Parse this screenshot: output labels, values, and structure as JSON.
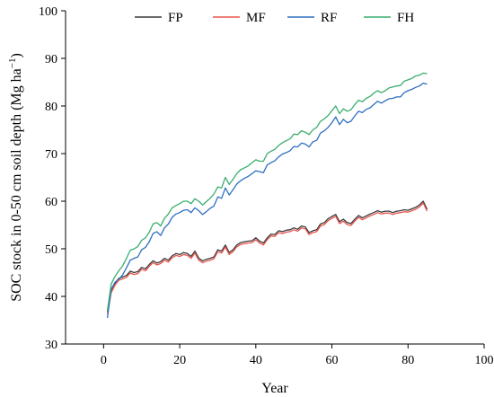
{
  "chart_data": {
    "type": "line",
    "title": "",
    "xlabel": "Year",
    "ylabel_main": "SOC stock in 0-50 cm soil depth (Mg ha",
    "ylabel_sup": "−1",
    "ylabel_end": ")",
    "xlim": [
      -10,
      100
    ],
    "ylim": [
      30,
      100
    ],
    "xticks": [
      0,
      20,
      40,
      60,
      80,
      100
    ],
    "yticks": [
      30,
      40,
      50,
      60,
      70,
      80,
      90,
      100
    ],
    "legend_position": "top",
    "series": [
      {
        "name": "FP",
        "color": "#3a3a3a",
        "x": [
          1,
          2,
          3,
          4,
          5,
          6,
          7,
          8,
          9,
          10,
          11,
          12,
          13,
          14,
          15,
          16,
          17,
          18,
          19,
          20,
          21,
          22,
          23,
          24,
          25,
          26,
          27,
          28,
          29,
          30,
          31,
          32,
          33,
          34,
          35,
          36,
          37,
          38,
          39,
          40,
          41,
          42,
          43,
          44,
          45,
          46,
          47,
          48,
          49,
          50,
          51,
          52,
          53,
          54,
          55,
          56,
          57,
          58,
          59,
          60,
          61,
          62,
          63,
          64,
          65,
          66,
          67,
          68,
          69,
          70,
          71,
          72,
          73,
          74,
          75,
          76,
          77,
          78,
          79,
          80,
          81,
          82,
          83,
          84,
          85
        ],
        "y": [
          36.8,
          41.3,
          42.8,
          43.8,
          44.1,
          44.4,
          45.3,
          45.0,
          45.2,
          46.1,
          45.8,
          46.7,
          47.5,
          47.0,
          47.3,
          48.0,
          47.6,
          48.5,
          49.0,
          48.8,
          49.2,
          49.0,
          48.4,
          49.5,
          48.0,
          47.5,
          47.8,
          48.0,
          48.3,
          49.8,
          49.5,
          50.8,
          49.2,
          49.8,
          50.8,
          51.3,
          51.5,
          51.6,
          51.7,
          52.3,
          51.6,
          51.2,
          52.3,
          53.1,
          53.0,
          53.8,
          53.6,
          53.9,
          54.0,
          54.4,
          54.1,
          54.8,
          54.6,
          53.4,
          53.8,
          54.0,
          55.2,
          55.5,
          56.3,
          56.8,
          57.2,
          55.7,
          56.2,
          55.5,
          55.3,
          56.2,
          57.0,
          56.5,
          56.9,
          57.3,
          57.6,
          58.0,
          57.7,
          57.9,
          57.9,
          57.6,
          57.9,
          58.0,
          58.2,
          58.1,
          58.4,
          58.7,
          59.2,
          60.0,
          58.3
        ]
      },
      {
        "name": "MF",
        "color": "#e8554e",
        "x": [
          1,
          2,
          3,
          4,
          5,
          6,
          7,
          8,
          9,
          10,
          11,
          12,
          13,
          14,
          15,
          16,
          17,
          18,
          19,
          20,
          21,
          22,
          23,
          24,
          25,
          26,
          27,
          28,
          29,
          30,
          31,
          32,
          33,
          34,
          35,
          36,
          37,
          38,
          39,
          40,
          41,
          42,
          43,
          44,
          45,
          46,
          47,
          48,
          49,
          50,
          51,
          52,
          53,
          54,
          55,
          56,
          57,
          58,
          59,
          60,
          61,
          62,
          63,
          64,
          65,
          66,
          67,
          68,
          69,
          70,
          71,
          72,
          73,
          74,
          75,
          76,
          77,
          78,
          79,
          80,
          81,
          82,
          83,
          84,
          85
        ],
        "y": [
          36.3,
          40.8,
          42.4,
          43.4,
          43.7,
          44.0,
          44.9,
          44.6,
          44.8,
          45.7,
          45.4,
          46.3,
          47.1,
          46.6,
          46.9,
          47.6,
          47.2,
          48.1,
          48.6,
          48.4,
          48.8,
          48.6,
          48.0,
          49.1,
          47.6,
          47.1,
          47.4,
          47.6,
          47.9,
          49.4,
          49.1,
          50.4,
          48.8,
          49.4,
          50.4,
          50.9,
          51.1,
          51.2,
          51.3,
          51.9,
          51.2,
          50.8,
          51.9,
          52.7,
          52.6,
          53.4,
          53.2,
          53.5,
          53.6,
          54.0,
          53.7,
          54.4,
          54.2,
          53.0,
          53.4,
          53.6,
          54.8,
          55.1,
          55.9,
          56.4,
          56.8,
          55.3,
          55.8,
          55.1,
          54.9,
          55.8,
          56.6,
          56.1,
          56.5,
          56.9,
          57.2,
          57.6,
          57.3,
          57.5,
          57.5,
          57.2,
          57.5,
          57.6,
          57.8,
          57.7,
          58.0,
          58.3,
          58.8,
          59.6,
          57.9
        ]
      },
      {
        "name": "RF",
        "color": "#2f6fc0",
        "x": [
          1,
          2,
          3,
          4,
          5,
          6,
          7,
          8,
          9,
          10,
          11,
          12,
          13,
          14,
          15,
          16,
          17,
          18,
          19,
          20,
          21,
          22,
          23,
          24,
          25,
          26,
          27,
          28,
          29,
          30,
          31,
          32,
          33,
          34,
          35,
          36,
          37,
          38,
          39,
          40,
          41,
          42,
          43,
          44,
          45,
          46,
          47,
          48,
          49,
          50,
          51,
          52,
          53,
          54,
          55,
          56,
          57,
          58,
          59,
          60,
          61,
          62,
          63,
          64,
          65,
          66,
          67,
          68,
          69,
          70,
          71,
          72,
          73,
          74,
          75,
          76,
          77,
          78,
          79,
          80,
          81,
          82,
          83,
          84,
          85
        ],
        "y": [
          35.5,
          41.5,
          43.0,
          43.6,
          44.5,
          46.0,
          47.6,
          48.0,
          48.3,
          49.8,
          50.3,
          51.5,
          53.2,
          53.6,
          52.8,
          54.4,
          55.2,
          56.6,
          57.3,
          57.6,
          58.1,
          58.2,
          57.6,
          58.6,
          58.0,
          57.2,
          57.8,
          58.5,
          59.0,
          60.9,
          60.6,
          62.8,
          61.3,
          62.4,
          63.6,
          64.3,
          64.8,
          65.2,
          65.8,
          66.4,
          66.2,
          66.0,
          67.6,
          68.1,
          68.5,
          69.3,
          69.9,
          70.2,
          70.6,
          71.5,
          71.4,
          72.2,
          72.0,
          71.4,
          72.5,
          72.8,
          74.3,
          74.8,
          75.5,
          76.5,
          77.7,
          76.1,
          77.2,
          76.5,
          76.8,
          77.9,
          78.9,
          78.6,
          79.3,
          79.6,
          80.3,
          81.0,
          80.6,
          81.1,
          81.5,
          81.6,
          81.9,
          81.9,
          82.8,
          83.2,
          83.5,
          83.9,
          84.2,
          84.8,
          84.6
        ]
      },
      {
        "name": "FH",
        "color": "#3aad6e",
        "x": [
          1,
          2,
          3,
          4,
          5,
          6,
          7,
          8,
          9,
          10,
          11,
          12,
          13,
          14,
          15,
          16,
          17,
          18,
          19,
          20,
          21,
          22,
          23,
          24,
          25,
          26,
          27,
          28,
          29,
          30,
          31,
          32,
          33,
          34,
          35,
          36,
          37,
          38,
          39,
          40,
          41,
          42,
          43,
          44,
          45,
          46,
          47,
          48,
          49,
          50,
          51,
          52,
          53,
          54,
          55,
          56,
          57,
          58,
          59,
          60,
          61,
          62,
          63,
          64,
          65,
          66,
          67,
          68,
          69,
          70,
          71,
          72,
          73,
          74,
          75,
          76,
          77,
          78,
          79,
          80,
          81,
          82,
          83,
          84,
          85
        ],
        "y": [
          37.0,
          42.6,
          44.2,
          45.4,
          46.4,
          48.0,
          49.7,
          50.0,
          50.5,
          51.8,
          52.3,
          53.5,
          55.2,
          55.5,
          54.8,
          56.4,
          57.3,
          58.6,
          59.1,
          59.5,
          60.0,
          60.0,
          59.5,
          60.5,
          60.0,
          59.2,
          59.9,
          60.6,
          61.5,
          63.0,
          62.8,
          65.0,
          63.5,
          64.6,
          65.8,
          66.6,
          67.0,
          67.4,
          68.1,
          68.7,
          68.4,
          68.4,
          70.0,
          70.5,
          70.9,
          71.7,
          72.3,
          72.7,
          73.1,
          74.1,
          74.0,
          74.8,
          74.5,
          74.0,
          75.0,
          75.5,
          76.8,
          77.3,
          78.0,
          79.0,
          80.0,
          78.4,
          79.4,
          78.9,
          79.2,
          80.3,
          81.2,
          80.9,
          81.6,
          82.0,
          82.7,
          83.2,
          82.8,
          83.2,
          83.8,
          84.0,
          84.2,
          84.3,
          85.2,
          85.5,
          85.8,
          86.3,
          86.5,
          86.9,
          86.8
        ]
      }
    ]
  }
}
